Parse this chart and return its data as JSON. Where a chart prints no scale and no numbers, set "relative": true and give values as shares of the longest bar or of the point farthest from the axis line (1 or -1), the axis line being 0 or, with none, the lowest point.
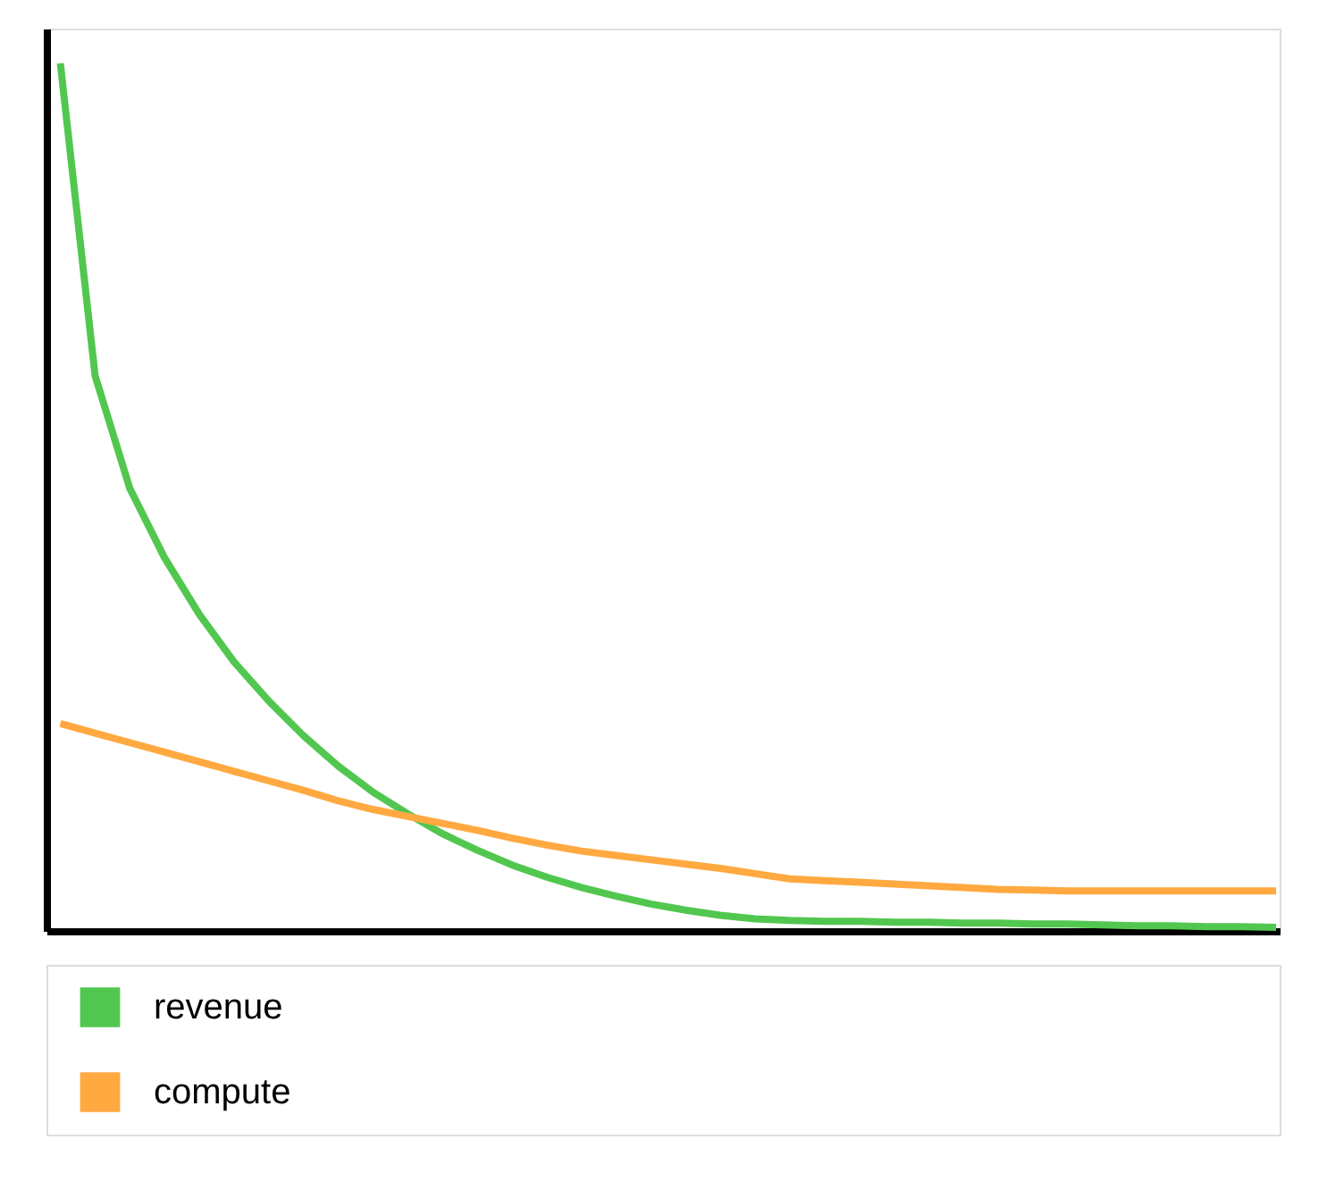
{
  "chart_data": {
    "type": "line",
    "relative": true,
    "grid": false,
    "legend": "bottom left",
    "marker": "none",
    "line_style": "solid",
    "categories": [
      null,
      null,
      null,
      null,
      null,
      null,
      null,
      null,
      null,
      null,
      null,
      null,
      null,
      null,
      null,
      null,
      null,
      null,
      null,
      null,
      null,
      null,
      null,
      null,
      null,
      null,
      null,
      null,
      null,
      null,
      null,
      null,
      null,
      null,
      null,
      null
    ],
    "series": [
      {
        "name": "revenue",
        "color": "#52c74f",
        "values": [
          1.0,
          0.64,
          0.51,
          0.43,
          0.365,
          0.31,
          0.265,
          0.225,
          0.19,
          0.16,
          0.135,
          0.112,
          0.093,
          0.076,
          0.062,
          0.05,
          0.04,
          0.031,
          0.024,
          0.018,
          0.014,
          0.012,
          0.011,
          0.011,
          0.01,
          0.01,
          0.009,
          0.009,
          0.008,
          0.008,
          0.007,
          0.006,
          0.006,
          0.005,
          0.005,
          0.004
        ]
      },
      {
        "name": "compute",
        "color": "#ffa940",
        "values": [
          0.239,
          0.228,
          0.217,
          0.206,
          0.195,
          0.184,
          0.173,
          0.162,
          0.15,
          0.14,
          0.132,
          0.124,
          0.116,
          0.107,
          0.099,
          0.092,
          0.087,
          0.082,
          0.077,
          0.072,
          0.066,
          0.06,
          0.058,
          0.056,
          0.054,
          0.052,
          0.05,
          0.048,
          0.047,
          0.046,
          0.046,
          0.046,
          0.046,
          0.046,
          0.046,
          0.046
        ]
      }
    ]
  }
}
